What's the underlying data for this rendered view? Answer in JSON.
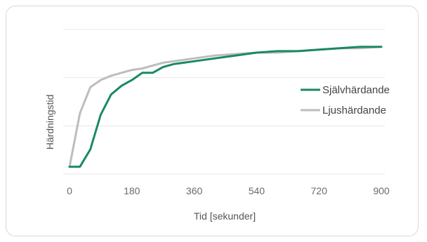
{
  "chart_data": {
    "type": "line",
    "title": "",
    "xlabel": "Tid [sekunder]",
    "ylabel": "Härdningstid",
    "xlim": [
      0,
      900
    ],
    "ylim": [
      0,
      100
    ],
    "x_ticks": [
      "0",
      "180",
      "360",
      "540",
      "720",
      "900"
    ],
    "grid": "horizontal",
    "legend_position": "right",
    "series": [
      {
        "name": "Självhärdande",
        "color": "#1a8a5f",
        "x": [
          0,
          30,
          60,
          90,
          120,
          150,
          180,
          210,
          240,
          270,
          300,
          360,
          420,
          480,
          540,
          600,
          660,
          720,
          780,
          840,
          900
        ],
        "values": [
          5,
          5,
          17,
          41,
          55,
          61,
          65,
          70,
          70,
          74,
          76,
          78,
          80,
          82,
          84,
          85,
          85,
          86,
          87,
          88,
          88
        ]
      },
      {
        "name": "Ljushärdande",
        "color": "#bdbdbd",
        "x": [
          0,
          30,
          60,
          90,
          120,
          150,
          180,
          210,
          240,
          270,
          300,
          360,
          420,
          480,
          540,
          600,
          660,
          720,
          780,
          840,
          900
        ],
        "values": [
          5,
          42,
          60,
          65,
          68,
          70,
          72,
          73,
          75,
          77,
          78,
          80,
          82,
          83,
          84,
          84,
          85,
          86,
          87,
          87,
          88
        ]
      }
    ]
  }
}
